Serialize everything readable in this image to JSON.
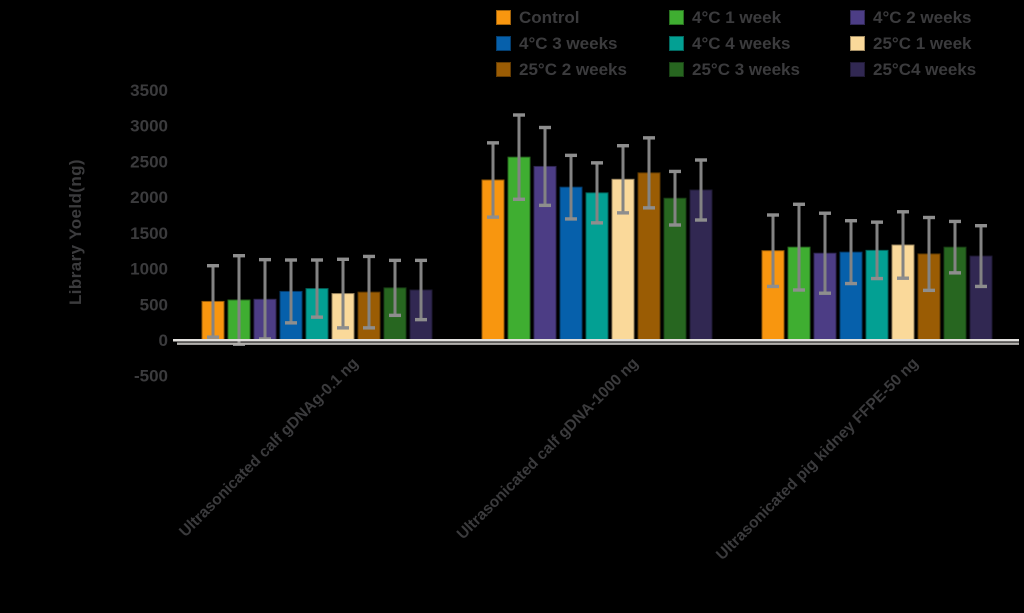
{
  "background": "#000000",
  "text_color": "#3B3B3D",
  "error_bar_color": "#838383",
  "error_cap_color": "#8E8E8E",
  "axis_line_top_color": "#E3E1DE",
  "axis_line_bottom_color": "#B2B0AD",
  "chart_data": {
    "type": "bar",
    "title": "",
    "xlabel": "",
    "ylabel": "Library Yoeld(ng)",
    "ylim": [
      -500,
      3500
    ],
    "yticks": [
      3500,
      3000,
      2500,
      2000,
      1500,
      1000,
      500,
      0,
      -500
    ],
    "grid": false,
    "legend_position": "top-right",
    "error_bars": true,
    "categories": [
      "Ultrasonicated calf gDNAg-0.1 ng",
      "Ultrasonicated calf gDNA-1000 ng",
      "Ultrasonicated pig kidney FFPE-50 ng"
    ],
    "series": [
      {
        "name": "Control",
        "color": "#F8960F",
        "values": [
          540,
          2240,
          1250
        ],
        "errors": [
          500,
          520,
          500
        ]
      },
      {
        "name": "4°C 1 week",
        "color": "#3FAE31",
        "values": [
          560,
          2560,
          1300
        ],
        "errors": [
          620,
          590,
          600
        ]
      },
      {
        "name": "4°C 2 weeks",
        "color": "#4C3D85",
        "values": [
          570,
          2430,
          1215
        ],
        "errors": [
          555,
          545,
          560
        ]
      },
      {
        "name": "4°C 3 weeks",
        "color": "#0660AB",
        "values": [
          680,
          2140,
          1230
        ],
        "errors": [
          440,
          445,
          440
        ]
      },
      {
        "name": "4°C 4 weeks",
        "color": "#03A093",
        "values": [
          720,
          2060,
          1255
        ],
        "errors": [
          400,
          420,
          395
        ]
      },
      {
        "name": "25°C 1 week",
        "color": "#FAD99A",
        "values": [
          650,
          2250,
          1330
        ],
        "errors": [
          480,
          470,
          465
        ]
      },
      {
        "name": "25°C 2 weeks",
        "color": "#9A5C04",
        "values": [
          670,
          2340,
          1205
        ],
        "errors": [
          500,
          490,
          510
        ]
      },
      {
        "name": "25°C 3 weeks",
        "color": "#276620",
        "values": [
          730,
          1985,
          1300
        ],
        "errors": [
          385,
          375,
          360
        ]
      },
      {
        "name": "25°C4 weeks",
        "color": "#312852",
        "values": [
          700,
          2100,
          1175
        ],
        "errors": [
          415,
          420,
          425
        ]
      }
    ]
  }
}
